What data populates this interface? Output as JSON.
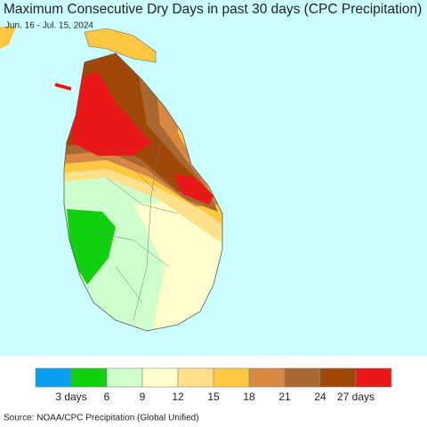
{
  "title": "Maximum Consecutive Dry Days in past 30 days (CPC Precipitation)",
  "subtitle": "Jun. 16 - Jul. 15, 2024",
  "legend": {
    "colors": [
      "#0aa0f0",
      "#10d010",
      "#ccffcc",
      "#ffffcc",
      "#ffe08a",
      "#ffc840",
      "#d88840",
      "#a86830",
      "#a04808",
      "#e81818"
    ],
    "labels": [
      "3 days",
      "6",
      "9",
      "12",
      "15",
      "18",
      "21",
      "24",
      "27 days"
    ]
  },
  "source": "Source: NOAA/CPC Precipitation (Global Unified)"
}
